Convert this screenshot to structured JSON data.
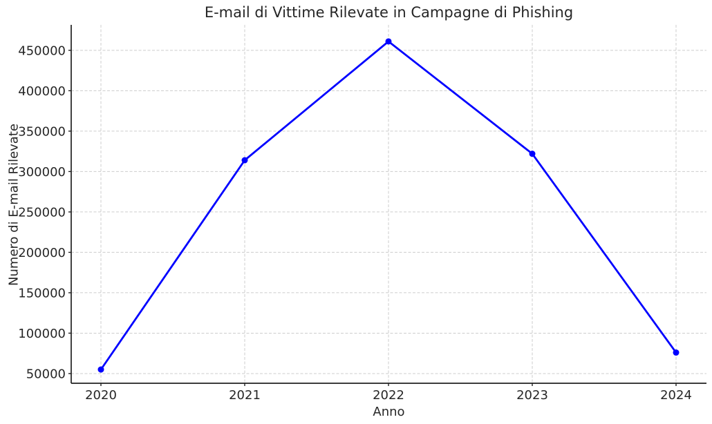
{
  "figure": {
    "background": "#ffffff"
  },
  "chart_data": {
    "type": "line",
    "title": "E-mail di Vittime Rilevate in Campagne di Phishing",
    "xlabel": "Anno",
    "ylabel": "Numero di E-mail Rilevate",
    "categories": [
      "2020",
      "2021",
      "2022",
      "2023",
      "2024"
    ],
    "values": [
      55000,
      314000,
      461000,
      322000,
      76000
    ],
    "yticks": [
      50000,
      100000,
      150000,
      200000,
      250000,
      300000,
      350000,
      400000,
      450000
    ],
    "ylim": [
      38000,
      481500
    ],
    "grid": true,
    "grid_line_style": "dashed",
    "legend": "none",
    "style": {
      "line_color": "#0000ff",
      "marker": "circle",
      "marker_radius": 4.5,
      "line_width": 2.8,
      "grid_color": "#cccccc",
      "axis_color": "#1f1f1f",
      "tick_label_color": "#262626",
      "tick_label_size": 18,
      "title_size": 21
    }
  }
}
